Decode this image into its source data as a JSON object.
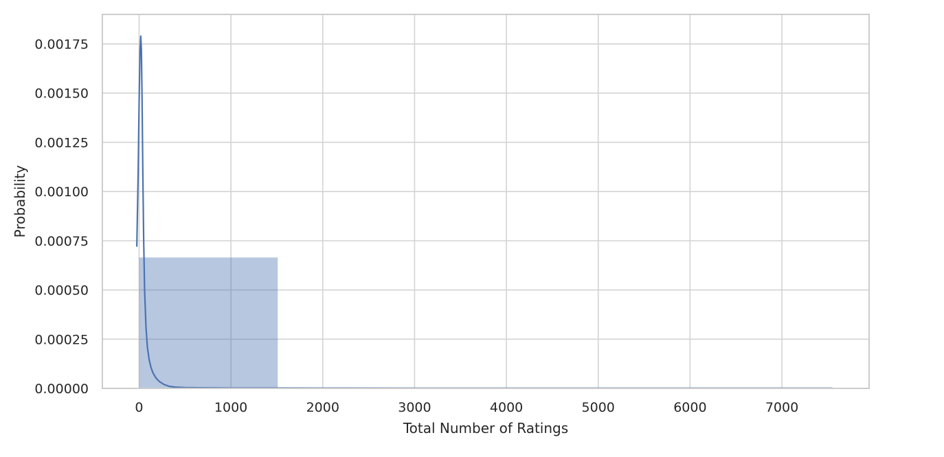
{
  "chart_data": {
    "type": "histogram+kde",
    "title": "",
    "xlabel": "Total Number of Ratings",
    "ylabel": "Probability",
    "xlim": [
      -400,
      7950
    ],
    "ylim": [
      0,
      0.0019
    ],
    "xticks": [
      0,
      1000,
      2000,
      3000,
      4000,
      5000,
      6000,
      7000
    ],
    "xtick_labels": [
      "0",
      "1000",
      "2000",
      "3000",
      "4000",
      "5000",
      "6000",
      "7000"
    ],
    "yticks": [
      0,
      0.00025,
      0.0005,
      0.00075,
      0.001,
      0.00125,
      0.0015,
      0.00175
    ],
    "ytick_labels": [
      "0.00000",
      "0.00025",
      "0.00050",
      "0.00075",
      "0.00100",
      "0.00125",
      "0.00150",
      "0.00175"
    ],
    "grid": true,
    "bins": [
      {
        "x0": 0,
        "x1": 1510,
        "height": 0.000665
      },
      {
        "x0": 1510,
        "x1": 3020,
        "height": 3e-06
      },
      {
        "x0": 3020,
        "x1": 4530,
        "height": 1e-06
      },
      {
        "x0": 4530,
        "x1": 6040,
        "height": 5e-07
      },
      {
        "x0": 6040,
        "x1": 7550,
        "height": 5e-07
      }
    ],
    "kde": {
      "x": [
        -25,
        -10,
        0,
        10,
        18,
        25,
        32,
        40,
        50,
        60,
        75,
        90,
        110,
        130,
        150,
        180,
        220,
        270,
        330,
        400,
        500,
        650,
        800,
        1000,
        1200,
        1500,
        2000,
        3000,
        4000,
        5000,
        6000,
        7000,
        7550
      ],
      "y": [
        0.00072,
        0.0011,
        0.00145,
        0.00172,
        0.00179,
        0.00172,
        0.00148,
        0.00112,
        0.00075,
        0.0005,
        0.00031,
        0.00021,
        0.000145,
        0.000105,
        8e-05,
        5.5e-05,
        3.5e-05,
        2e-05,
        1e-05,
        6e-06,
        4e-06,
        3e-06,
        2.5e-06,
        2e-06,
        2e-06,
        2e-06,
        1.5e-06,
        1e-06,
        1e-06,
        1e-06,
        1e-06,
        1e-06,
        1e-06
      ]
    },
    "colors": {
      "bar": "#4c72b0",
      "bar_opacity": 0.4,
      "line": "#4c72b0",
      "grid": "#d3d3d3",
      "frame": "#cccccc"
    }
  }
}
